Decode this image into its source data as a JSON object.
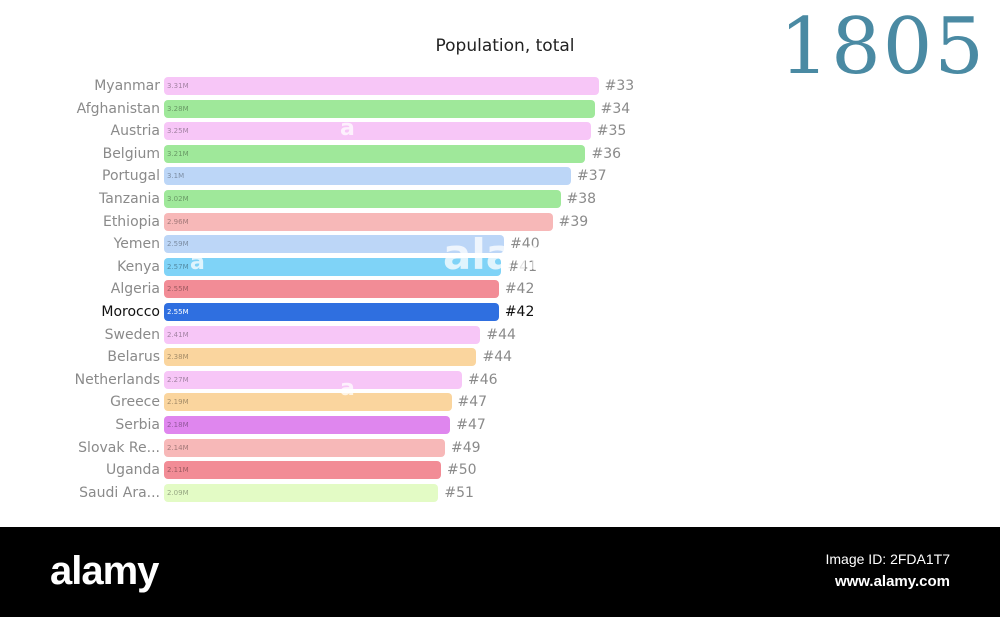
{
  "chart_data": {
    "type": "bar",
    "title": "Population, total",
    "year": "1805",
    "highlight": "Morocco",
    "categories": [
      "Myanmar",
      "Afghanistan",
      "Austria",
      "Belgium",
      "Portugal",
      "Tanzania",
      "Ethiopia",
      "Yemen",
      "Kenya",
      "Algeria",
      "Morocco",
      "Sweden",
      "Belarus",
      "Netherlands",
      "Greece",
      "Serbia",
      "Slovak Re...",
      "Uganda",
      "Saudi Ara..."
    ],
    "values": [
      3.31,
      3.28,
      3.25,
      3.21,
      3.1,
      3.02,
      2.96,
      2.59,
      2.57,
      2.55,
      2.55,
      2.41,
      2.38,
      2.27,
      2.19,
      2.18,
      2.14,
      2.11,
      2.09
    ],
    "value_labels": [
      "3.31M",
      "3.28M",
      "3.25M",
      "3.21M",
      "3.1M",
      "3.02M",
      "2.96M",
      "2.59M",
      "2.57M",
      "2.55M",
      "2.55M",
      "2.41M",
      "2.38M",
      "2.27M",
      "2.19M",
      "2.18M",
      "2.14M",
      "2.11M",
      "2.09M"
    ],
    "ranks": [
      "#33",
      "#34",
      "#35",
      "#36",
      "#37",
      "#38",
      "#39",
      "#40",
      "#41",
      "#42",
      "#42",
      "#44",
      "#44",
      "#46",
      "#47",
      "#47",
      "#49",
      "#50",
      "#51"
    ],
    "colors": [
      "#f7c6f7",
      "#9fe89a",
      "#f7c6f7",
      "#9fe89a",
      "#bcd6f7",
      "#9fe89a",
      "#f7b8b8",
      "#bcd6f7",
      "#7fd3f7",
      "#f28c96",
      "#2f6fe0",
      "#f7c6f7",
      "#fad59e",
      "#f7c6f7",
      "#fad59e",
      "#df86ee",
      "#f7b8b8",
      "#f28c96",
      "#e3fbc5"
    ]
  },
  "watermark": {
    "main": "alamy",
    "small": "a"
  },
  "footer": {
    "logo": "alamy",
    "image_id": "Image ID: 2FDA1T7",
    "url": "www.alamy.com"
  }
}
